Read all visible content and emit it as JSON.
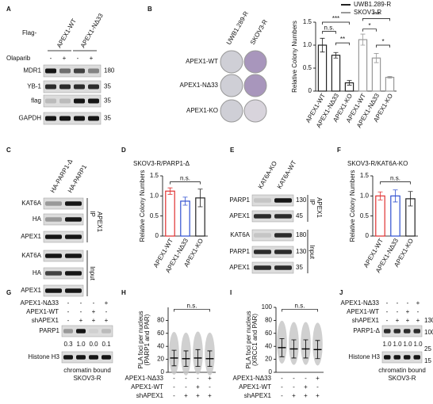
{
  "A": {
    "label": "A",
    "flag": "Flag-",
    "columns": [
      "APEX1-WT",
      "APEX1-NΔ33"
    ],
    "treatment": {
      "name": "Olaparib",
      "signs": [
        "-",
        "+",
        "-",
        "+"
      ]
    },
    "blots": [
      "MDR1",
      "YB-1",
      "flag",
      "GAPDH"
    ],
    "markers": [
      180,
      35,
      35,
      35
    ]
  },
  "B": {
    "label": "B",
    "columns": [
      "UWB1.289-R",
      "SKOV3-R"
    ],
    "rows": [
      "APEX1-WT",
      "APEX1-NΔ33",
      "APEX1-KO"
    ]
  },
  "C": {
    "label": "C",
    "columns": [
      "HA-PARP1-Δ",
      "HA-PARP1"
    ],
    "blots": [
      "KAT6A",
      "HA",
      "APEX1",
      "KAT6A",
      "HA",
      "APEX1"
    ],
    "ip": "IP",
    "ip_target": "APEX1",
    "input": "Input"
  },
  "D": {
    "label": "D",
    "title": "SKOV3-R/PARP1-Δ"
  },
  "E": {
    "label": "E",
    "columns": [
      "KAT6A-KO",
      "KAT6A-WT"
    ],
    "blots": [
      "PARP1",
      "APEX1",
      "KAT6A",
      "PARP1",
      "APEX1"
    ],
    "markers": [
      130,
      45,
      180,
      130,
      35
    ],
    "ip": "IP",
    "ip_target": "APEX1",
    "input": "Input"
  },
  "F": {
    "label": "F",
    "title": "SKOV3-R/KAT6A-KO"
  },
  "G": {
    "label": "G",
    "conditions": [
      {
        "name": "APEX1-NΔ33",
        "signs": [
          "-",
          "-",
          "-",
          "+"
        ]
      },
      {
        "name": "APEX1-WT",
        "signs": [
          "-",
          "-",
          "+",
          "-"
        ]
      },
      {
        "name": "shAPEX1",
        "signs": [
          "-",
          "+",
          "+",
          "+"
        ]
      }
    ],
    "blots": [
      "PARP1",
      "Histone H3"
    ],
    "quantification": [
      "0.3",
      "1.0",
      "0.0",
      "0.1"
    ],
    "caption": [
      "chromatin bound",
      "SKOV3-R"
    ]
  },
  "H": {
    "label": "H"
  },
  "I": {
    "label": "I"
  },
  "J": {
    "label": "J",
    "conditions": [
      {
        "name": "APEX1-NΔ33",
        "signs": [
          "-",
          "-",
          "-",
          "+"
        ]
      },
      {
        "name": "APEX1-WT",
        "signs": [
          "-",
          "-",
          "+",
          "-"
        ]
      },
      {
        "name": "shAPEX1",
        "signs": [
          "-",
          "+",
          "+",
          "+"
        ]
      }
    ],
    "blots": [
      "PARP1-Δ",
      "Histone H3"
    ],
    "quantification": [
      "1.0",
      "1.0",
      "1.0",
      "1.0"
    ],
    "markers": [
      130,
      100,
      25,
      15
    ],
    "caption": [
      "chromatin bound",
      "SKOV3-R"
    ]
  },
  "chart_data": [
    {
      "type": "bar",
      "y_label": "Relative Colony Numbers",
      "categories": [
        "APEX1-WT",
        "APEX1-NΔ33",
        "APEX1-KO"
      ],
      "series": [
        {
          "name": "UWB1.289-R",
          "color": "#222222",
          "values": [
            1.0,
            0.78,
            0.18
          ],
          "errors": [
            0.15,
            0.06,
            0.05
          ]
        },
        {
          "name": "SKOV3-R",
          "color": "#999999",
          "values": [
            1.12,
            0.72,
            0.3
          ],
          "errors": [
            0.12,
            0.1,
            0.02
          ]
        }
      ],
      "ylim": [
        0,
        1.5
      ],
      "yticks": [
        0,
        0.5,
        {
          "value": 1,
          "label": "1.0"
        },
        1.5
      ],
      "annotations": [
        "***",
        "n.s.",
        "**",
        "***",
        "*",
        "*"
      ],
      "legend": "top-right"
    },
    {
      "type": "bar",
      "y_label": "Relative Colony Numbers",
      "categories": [
        "APEX1-WT",
        "APEX1-NΔ33",
        "APEX1-KO"
      ],
      "values": [
        1.12,
        0.87,
        0.95
      ],
      "errors": [
        0.08,
        0.1,
        0.22
      ],
      "colors": [
        "#e03030",
        "#3050d0",
        "#222222"
      ],
      "ylim": [
        0,
        1.5
      ],
      "yticks": [
        0,
        0.5,
        {
          "value": 1,
          "label": "1.0"
        },
        1.5
      ],
      "annotations": [
        "n.s."
      ]
    },
    {
      "type": "bar",
      "y_label": "Relative Colony Numbers",
      "categories": [
        "APEX1-WT",
        "APEX1-NΔ33",
        "APEX1-KO"
      ],
      "values": [
        1.0,
        1.0,
        0.93
      ],
      "errors": [
        0.1,
        0.15,
        0.18
      ],
      "colors": [
        "#e03030",
        "#3050d0",
        "#222222"
      ],
      "ylim": [
        0,
        1.5
      ],
      "yticks": [
        0,
        0.5,
        {
          "value": 1,
          "label": "1.0"
        },
        1.5
      ],
      "annotations": [
        "n.s."
      ]
    },
    {
      "type": "strip",
      "y_label": [
        "PLA foci per nucleus",
        "(PARP1 and PAR)"
      ],
      "conditions": [
        {
          "name": "APEX1-NΔ33",
          "signs": [
            "-",
            "-",
            "-",
            "+"
          ]
        },
        {
          "name": "APEX1-WT",
          "signs": [
            "-",
            "-",
            "+",
            "-"
          ]
        },
        {
          "name": "shAPEX1",
          "signs": [
            "-",
            "+",
            "+",
            "+"
          ]
        }
      ],
      "values": [
        22,
        21,
        22,
        21
      ],
      "errors": [
        12,
        12,
        13,
        12
      ],
      "ylim": [
        0,
        100
      ],
      "yticks": [
        0,
        20,
        40,
        60,
        80
      ],
      "annotations": [
        "n.s."
      ]
    },
    {
      "type": "strip",
      "y_label": [
        "PLA foci per nucleus",
        "(XRCC1 and PAR)"
      ],
      "conditions": [
        {
          "name": "APEX1-NΔ33",
          "signs": [
            "-",
            "-",
            "-",
            "+"
          ]
        },
        {
          "name": "APEX1-WT",
          "signs": [
            "-",
            "-",
            "+",
            "-"
          ]
        },
        {
          "name": "shAPEX1",
          "signs": [
            "-",
            "+",
            "+",
            "+"
          ]
        }
      ],
      "values": [
        38,
        36,
        36,
        35
      ],
      "errors": [
        14,
        14,
        14,
        14
      ],
      "ylim": [
        0,
        100
      ],
      "yticks": [
        0,
        20,
        40,
        60,
        80,
        100
      ],
      "annotations": [
        "n.s."
      ]
    }
  ]
}
